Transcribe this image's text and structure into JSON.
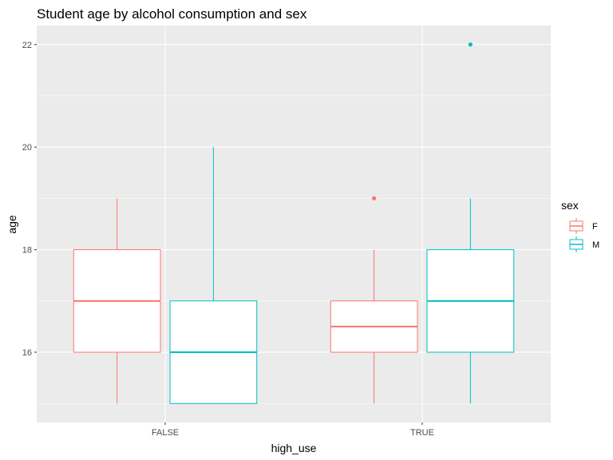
{
  "chart_data": {
    "type": "box",
    "title": "Student age by alcohol consumption and sex",
    "xlabel": "high_use",
    "ylabel": "age",
    "categories": [
      "FALSE",
      "TRUE"
    ],
    "yticks": [
      16,
      18,
      20,
      22
    ],
    "ylim": [
      14.63,
      22.37
    ],
    "grid": true,
    "legend": {
      "title": "sex",
      "position": "right"
    },
    "series": [
      {
        "name": "F",
        "color": "#F8766D",
        "boxes": [
          {
            "category": "FALSE",
            "min": 15,
            "q1": 16,
            "median": 17,
            "q3": 18,
            "max": 19,
            "outliers": []
          },
          {
            "category": "TRUE",
            "min": 15,
            "q1": 16,
            "median": 16.5,
            "q3": 17,
            "max": 18,
            "outliers": [
              19
            ]
          }
        ]
      },
      {
        "name": "M",
        "color": "#00BFC4",
        "boxes": [
          {
            "category": "FALSE",
            "min": 15,
            "q1": 15,
            "median": 16,
            "q3": 17,
            "max": 20,
            "outliers": []
          },
          {
            "category": "TRUE",
            "min": 15,
            "q1": 16,
            "median": 17,
            "q3": 18,
            "max": 19,
            "outliers": [
              22
            ]
          }
        ]
      }
    ]
  }
}
